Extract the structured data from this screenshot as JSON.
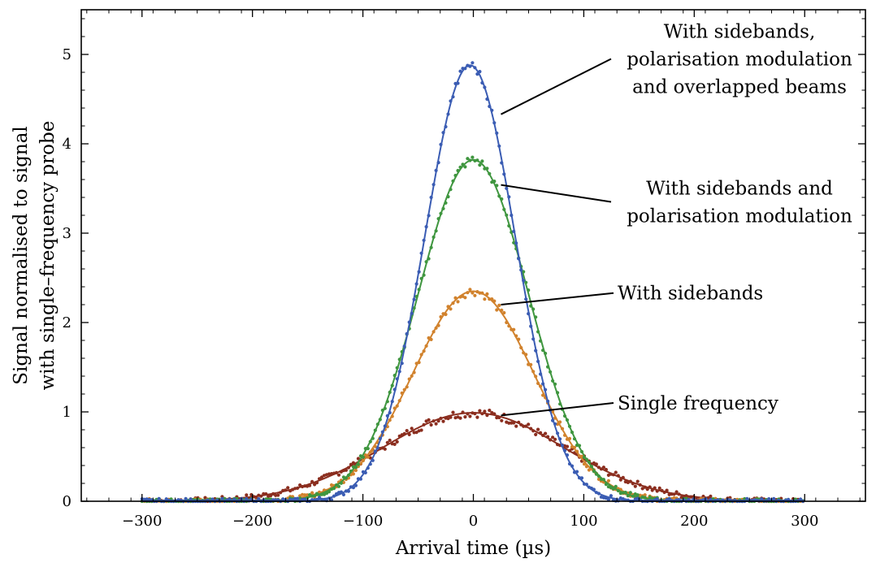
{
  "chart_data": {
    "type": "line",
    "title": "",
    "xlabel": "Arrival time (µs)",
    "ylabel": [
      "Signal normalised to signal",
      "with single–frequency probe"
    ],
    "xlim": [
      -355,
      355
    ],
    "ylim": [
      0,
      5.5
    ],
    "x_ticks": [
      -300,
      -200,
      -100,
      0,
      100,
      200,
      300
    ],
    "x_tick_labels": [
      "−300",
      "−200",
      "−100",
      "0",
      "100",
      "200",
      "300"
    ],
    "y_ticks": [
      0,
      1,
      2,
      3,
      4,
      5
    ],
    "y_tick_labels": [
      "0",
      "1",
      "2",
      "3",
      "4",
      "5"
    ],
    "grid": false,
    "legend": "none (series labelled by annotations)",
    "series": [
      {
        "key": "single",
        "color": "#8b2e1f",
        "peak": 0.99,
        "center": 0,
        "sigma": 82,
        "data": {
          "x": [
            -300,
            -250,
            -200,
            -150,
            -100,
            -75,
            -50,
            -25,
            0,
            25,
            50,
            75,
            100,
            125,
            150,
            200,
            250,
            300
          ],
          "y": [
            0.0,
            0.01,
            0.07,
            0.17,
            0.47,
            0.65,
            0.83,
            0.95,
            0.99,
            0.95,
            0.83,
            0.65,
            0.47,
            0.3,
            0.17,
            0.05,
            0.01,
            0.0
          ]
        }
      },
      {
        "key": "sidebands",
        "color": "#d1822d",
        "peak": 2.35,
        "center": 0,
        "sigma": 55,
        "data": {
          "x": [
            -300,
            -200,
            -150,
            -100,
            -75,
            -50,
            -25,
            0,
            25,
            50,
            75,
            100,
            125,
            150,
            200,
            300
          ],
          "y": [
            0.0,
            0.03,
            0.22,
            0.75,
            1.3,
            1.85,
            2.22,
            2.35,
            2.22,
            1.85,
            1.3,
            0.75,
            0.32,
            0.08,
            0.01,
            0.0
          ]
        }
      },
      {
        "key": "sidebands_pol",
        "color": "#3f963f",
        "peak": 3.82,
        "center": 0,
        "sigma": 50,
        "data": {
          "x": [
            -300,
            -200,
            -150,
            -100,
            -75,
            -50,
            -25,
            0,
            25,
            50,
            75,
            100,
            125,
            150,
            200,
            300
          ],
          "y": [
            0.0,
            0.03,
            0.25,
            0.93,
            1.8,
            2.7,
            3.5,
            3.8,
            3.5,
            2.75,
            1.75,
            0.88,
            0.33,
            0.1,
            0.01,
            0.0
          ]
        }
      },
      {
        "key": "sidebands_pol_overlap",
        "color": "#3a5cb3",
        "peak": 4.88,
        "center": -3,
        "sigma": 41,
        "data": {
          "x": [
            -300,
            -200,
            -150,
            -100,
            -75,
            -50,
            -25,
            0,
            25,
            50,
            75,
            100,
            125,
            150,
            200,
            300
          ],
          "y": [
            0.0,
            0.0,
            0.02,
            0.56,
            1.7,
            3.0,
            4.4,
            4.85,
            4.3,
            2.9,
            1.55,
            0.52,
            0.1,
            0.01,
            0.0,
            0.0
          ]
        }
      }
    ],
    "annotations": [
      {
        "series": "sidebands_pol_overlap",
        "lines": [
          "With sidebands,",
          "polarisation modulation",
          "and overlapped beams"
        ],
        "point": [
          25,
          4.33
        ],
        "text_x": 255,
        "text_y": 4.95
      },
      {
        "series": "sidebands_pol",
        "lines": [
          "With sidebands and",
          "polarisation modulation"
        ],
        "point": [
          25,
          3.54
        ],
        "text_x": 255,
        "text_y": 3.35
      },
      {
        "series": "sidebands",
        "lines": [
          "With sidebands"
        ],
        "point": [
          25,
          2.2
        ],
        "text_x": 240,
        "text_y": 2.33
      },
      {
        "series": "single",
        "lines": [
          "Single frequency"
        ],
        "point": [
          25,
          0.96
        ],
        "text_x": 240,
        "text_y": 1.1
      }
    ]
  }
}
